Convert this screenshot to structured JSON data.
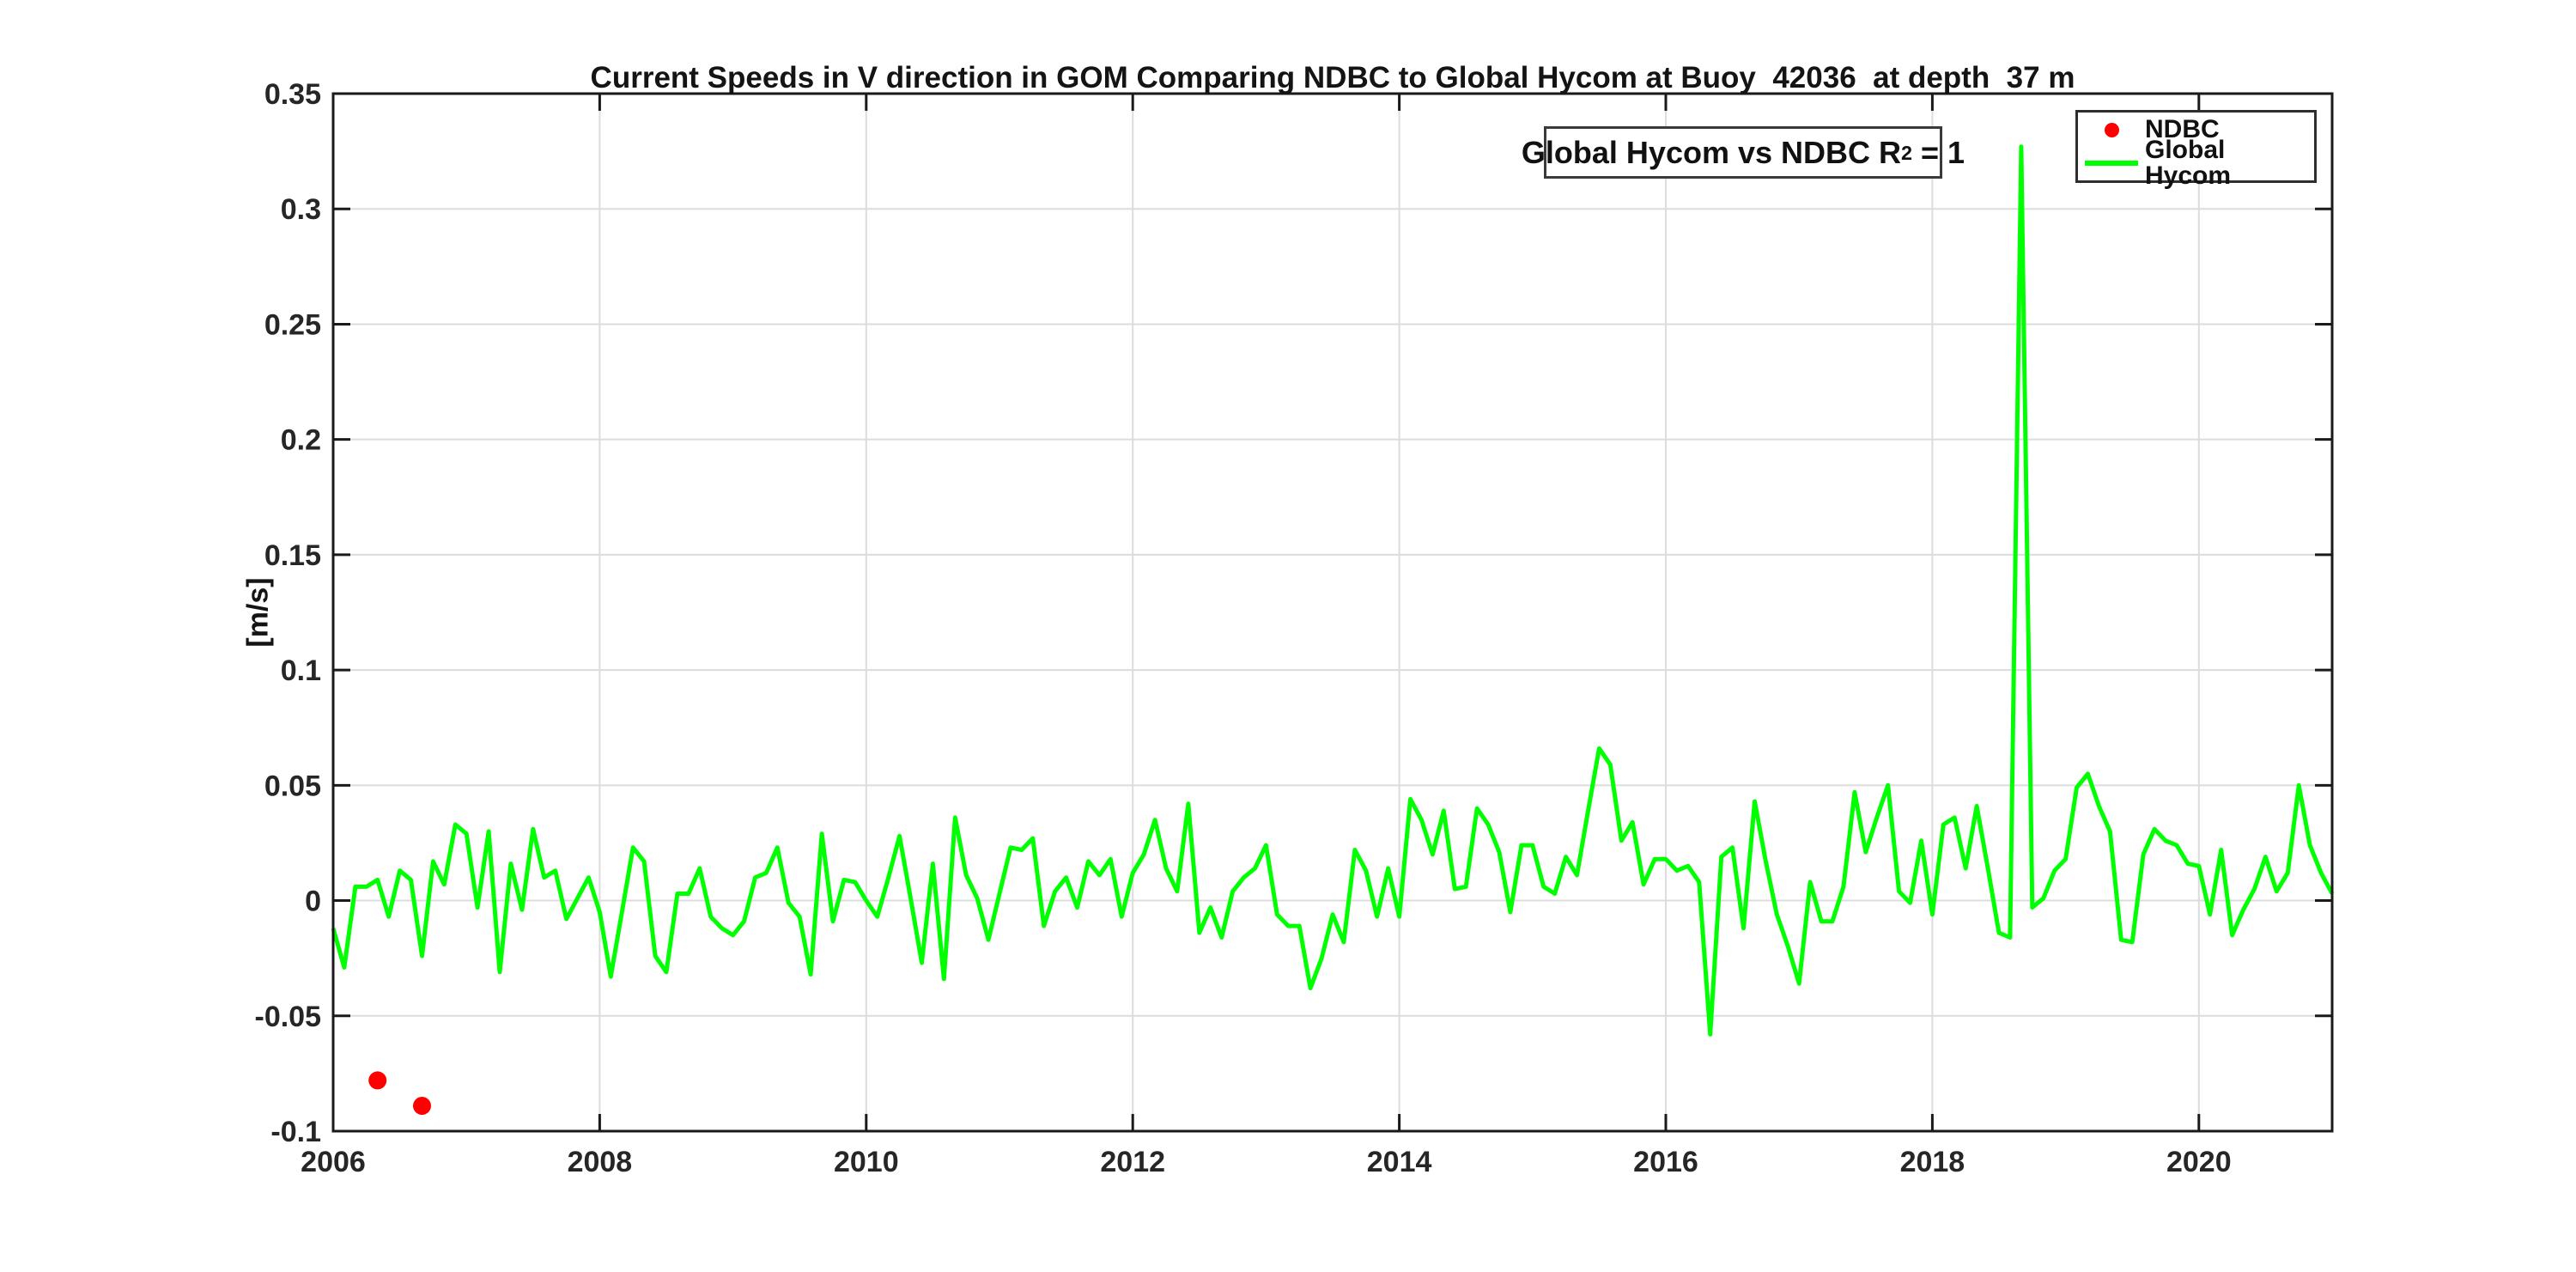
{
  "figure": {
    "background": "#ffffff"
  },
  "chart_data": {
    "type": "line",
    "title": "Current Speeds in V direction in GOM Comparing NDBC to Global Hycom at Buoy  42036  at depth  37 m",
    "xlabel": "",
    "ylabel": "[m/s]",
    "xlim": [
      2006,
      2021
    ],
    "ylim": [
      -0.1,
      0.35
    ],
    "xticks": [
      2006,
      2008,
      2010,
      2012,
      2014,
      2016,
      2018,
      2020
    ],
    "xtick_labels": [
      "2006",
      "2008",
      "2010",
      "2012",
      "2014",
      "2016",
      "2018",
      "2020"
    ],
    "yticks": [
      -0.1,
      -0.05,
      0,
      0.05,
      0.1,
      0.15,
      0.2,
      0.25,
      0.3,
      0.35
    ],
    "ytick_labels": [
      "-0.1",
      "-0.05",
      "0",
      "0.05",
      "0.1",
      "0.15",
      "0.2",
      "0.25",
      "0.3",
      "0.35"
    ],
    "grid": true,
    "legend": [
      "NDBC",
      "Global Hycom"
    ],
    "legend_position": "top-right",
    "annotation": {
      "before": "Global Hycom vs NDBC R",
      "sup": "2",
      "after": " = 1"
    },
    "colors": {
      "ndbc": "#ff0000",
      "global_hycom": "#00ff00",
      "axis": "#1a1a1a",
      "grid": "#dcdcdc",
      "text": "#262626"
    },
    "series": [
      {
        "name": "NDBC",
        "type": "scatter",
        "color": "#ff0000",
        "marker": "dot",
        "x": [
          2006.333,
          2006.667
        ],
        "y": [
          -0.078,
          -0.089
        ]
      },
      {
        "name": "Global Hycom",
        "type": "line",
        "color": "#00ff00",
        "x0": 2006.0,
        "dx": 0.0833333,
        "values": [
          -0.012,
          -0.029,
          0.006,
          0.006,
          0.009,
          -0.007,
          0.013,
          0.009,
          -0.024,
          0.017,
          0.007,
          0.033,
          0.029,
          -0.003,
          0.03,
          -0.031,
          0.016,
          -0.004,
          0.031,
          0.01,
          0.013,
          -0.008,
          0.001,
          0.01,
          -0.005,
          -0.033,
          -0.005,
          0.023,
          0.017,
          -0.024,
          -0.031,
          0.003,
          0.003,
          0.014,
          -0.007,
          -0.012,
          -0.015,
          -0.009,
          0.01,
          0.012,
          0.023,
          -0.001,
          -0.007,
          -0.032,
          0.029,
          -0.009,
          0.009,
          0.008,
          0.0,
          -0.007,
          0.01,
          0.028,
          0.001,
          -0.027,
          0.016,
          -0.034,
          0.036,
          0.011,
          0.001,
          -0.017,
          0.003,
          0.023,
          0.022,
          0.027,
          -0.011,
          0.004,
          0.01,
          -0.003,
          0.017,
          0.011,
          0.018,
          -0.007,
          0.012,
          0.02,
          0.035,
          0.014,
          0.004,
          0.042,
          -0.014,
          -0.003,
          -0.016,
          0.004,
          0.01,
          0.014,
          0.024,
          -0.006,
          -0.011,
          -0.011,
          -0.038,
          -0.025,
          -0.006,
          -0.018,
          0.022,
          0.013,
          -0.007,
          0.014,
          -0.007,
          0.044,
          0.035,
          0.02,
          0.039,
          0.005,
          0.006,
          0.04,
          0.033,
          0.021,
          -0.005,
          0.024,
          0.024,
          0.006,
          0.003,
          0.019,
          0.011,
          0.039,
          0.066,
          0.059,
          0.026,
          0.034,
          0.007,
          0.018,
          0.018,
          0.013,
          0.015,
          0.008,
          -0.058,
          0.019,
          0.023,
          -0.012,
          0.043,
          0.017,
          -0.006,
          -0.02,
          -0.036,
          0.008,
          -0.009,
          -0.009,
          0.006,
          0.047,
          0.021,
          0.036,
          0.05,
          0.004,
          -0.001,
          0.026,
          -0.006,
          0.033,
          0.036,
          0.014,
          0.041,
          0.014,
          -0.014,
          -0.016,
          0.327,
          -0.003,
          0.001,
          0.013,
          0.018,
          0.049,
          0.055,
          0.041,
          0.03,
          -0.017,
          -0.018,
          0.02,
          0.031,
          0.026,
          0.024,
          0.016,
          0.015,
          -0.006,
          0.022,
          -0.015,
          -0.004,
          0.005,
          0.019,
          0.004,
          0.012,
          0.05,
          0.024,
          0.012,
          0.003
        ]
      }
    ]
  }
}
